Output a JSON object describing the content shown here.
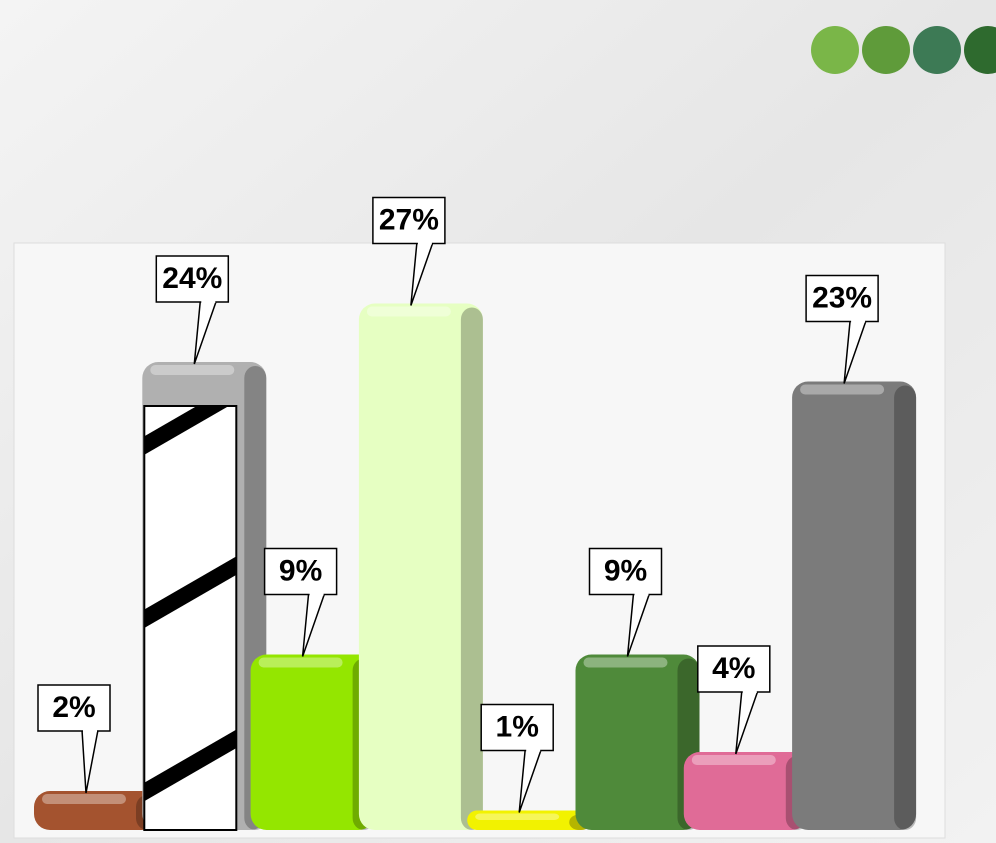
{
  "chart_data": {
    "type": "bar",
    "categories": [
      null,
      null,
      null,
      null,
      null,
      null,
      null,
      null
    ],
    "values": [
      2,
      24,
      9,
      27,
      1,
      9,
      4,
      23
    ],
    "value_labels": [
      "2%",
      "24%",
      "9%",
      "27%",
      "1%",
      "9%",
      "4%",
      "23%"
    ],
    "colors": [
      "#a4532f",
      "#ffffff",
      "#94e600",
      "#e6ffc2",
      "#f2f200",
      "#4f8a3a",
      "#e06b97",
      "#7b7b7b"
    ],
    "hatch": [
      false,
      true,
      false,
      false,
      false,
      false,
      false,
      false
    ]
  }
}
